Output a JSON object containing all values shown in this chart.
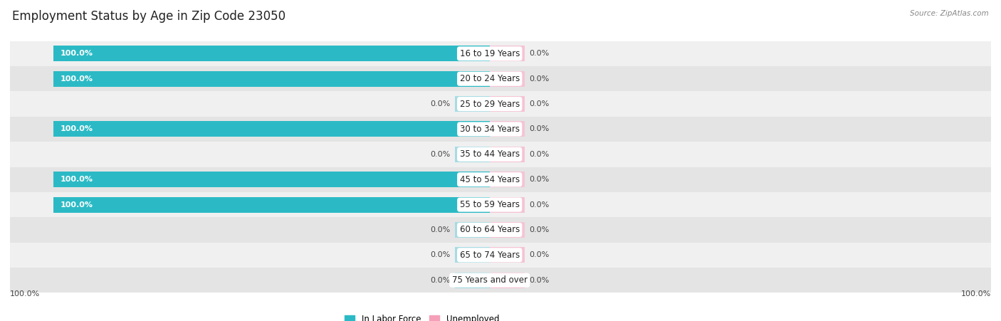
{
  "title": "Employment Status by Age in Zip Code 23050",
  "source": "Source: ZipAtlas.com",
  "age_groups": [
    "16 to 19 Years",
    "20 to 24 Years",
    "25 to 29 Years",
    "30 to 34 Years",
    "35 to 44 Years",
    "45 to 54 Years",
    "55 to 59 Years",
    "60 to 64 Years",
    "65 to 74 Years",
    "75 Years and over"
  ],
  "labor_force": [
    100.0,
    100.0,
    0.0,
    100.0,
    0.0,
    100.0,
    100.0,
    0.0,
    0.0,
    0.0
  ],
  "unemployed": [
    0.0,
    0.0,
    0.0,
    0.0,
    0.0,
    0.0,
    0.0,
    0.0,
    0.0,
    0.0
  ],
  "labor_force_color": "#2BBAC5",
  "labor_force_color_light": "#A8DCE4",
  "unemployed_color": "#F5A0B8",
  "unemployed_color_light": "#F5C4D4",
  "row_bg_color_1": "#F0F0F0",
  "row_bg_color_2": "#E4E4E4",
  "title_fontsize": 12,
  "label_fontsize": 8.5,
  "value_fontsize": 8,
  "legend_fontsize": 8.5,
  "source_fontsize": 7.5,
  "background_color": "#FFFFFF",
  "max_value": 100.0,
  "small_bar_pct": 8.0,
  "bottom_left_label": "100.0%",
  "bottom_right_label": "100.0%"
}
